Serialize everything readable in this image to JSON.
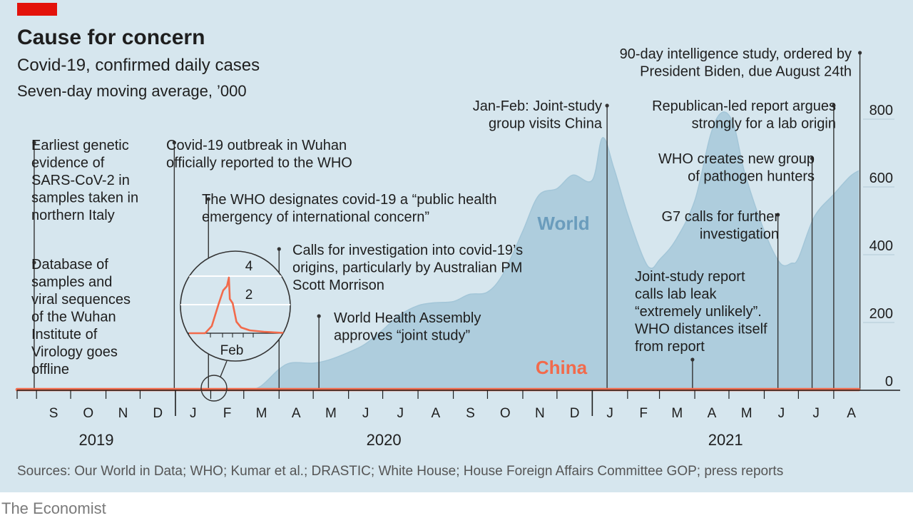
{
  "chart_data": {
    "type": "area",
    "title": "Cause for concern",
    "subtitle": "Covid-19, confirmed daily cases",
    "unit_note": "Seven-day moving average, ’000",
    "source": "Sources: Our World in Data; WHO; Kumar et al.; DRASTIC; White House; House Foreign Affairs Committee GOP; press reports",
    "brand": "The Economist",
    "colors": {
      "background": "#d6e6ee",
      "world_fill": "#aecddd",
      "world_line": "#a3c6d8",
      "china": "#f26a4b",
      "text": "#1e1e1e",
      "brand_red": "#e3120b",
      "grid": "#ffffff",
      "world_label": "#6a9cbc"
    },
    "x_axis": {
      "range": [
        "2019-08-15",
        "2021-08-23"
      ],
      "months": [
        "S",
        "O",
        "N",
        "D",
        "J",
        "F",
        "M",
        "A",
        "M",
        "J",
        "J",
        "A",
        "S",
        "O",
        "N",
        "D",
        "J",
        "F",
        "M",
        "A",
        "M",
        "J",
        "J",
        "A"
      ],
      "years": [
        "2019",
        "2020",
        "2021"
      ]
    },
    "y_axis": {
      "side": "right",
      "range": [
        0,
        850
      ],
      "ticks": [
        "0",
        "200",
        "400",
        "600",
        "800"
      ],
      "tick_values": [
        0,
        200,
        400,
        600,
        800
      ]
    },
    "series": [
      {
        "name": "World",
        "color": "#aecddd",
        "points": [
          [
            "2019-08-15",
            0
          ],
          [
            "2020-01-31",
            0
          ],
          [
            "2020-03-01",
            1
          ],
          [
            "2020-03-15",
            10
          ],
          [
            "2020-04-01",
            62
          ],
          [
            "2020-04-12",
            81
          ],
          [
            "2020-05-01",
            80
          ],
          [
            "2020-05-15",
            90
          ],
          [
            "2020-06-01",
            112
          ],
          [
            "2020-06-15",
            135
          ],
          [
            "2020-07-01",
            178
          ],
          [
            "2020-07-15",
            220
          ],
          [
            "2020-08-01",
            250
          ],
          [
            "2020-08-15",
            258
          ],
          [
            "2020-09-01",
            262
          ],
          [
            "2020-09-15",
            283
          ],
          [
            "2020-10-01",
            290
          ],
          [
            "2020-10-15",
            345
          ],
          [
            "2020-11-01",
            470
          ],
          [
            "2020-11-15",
            575
          ],
          [
            "2020-12-01",
            595
          ],
          [
            "2020-12-15",
            635
          ],
          [
            "2021-01-01",
            620
          ],
          [
            "2021-01-10",
            745
          ],
          [
            "2021-01-20",
            655
          ],
          [
            "2021-02-01",
            520
          ],
          [
            "2021-02-15",
            390
          ],
          [
            "2021-02-22",
            360
          ],
          [
            "2021-03-01",
            385
          ],
          [
            "2021-03-15",
            442
          ],
          [
            "2021-04-01",
            560
          ],
          [
            "2021-04-15",
            755
          ],
          [
            "2021-04-25",
            820
          ],
          [
            "2021-05-05",
            785
          ],
          [
            "2021-05-15",
            640
          ],
          [
            "2021-06-01",
            470
          ],
          [
            "2021-06-15",
            375
          ],
          [
            "2021-06-25",
            375
          ],
          [
            "2021-07-01",
            390
          ],
          [
            "2021-07-15",
            512
          ],
          [
            "2021-08-01",
            578
          ],
          [
            "2021-08-15",
            630
          ],
          [
            "2021-08-23",
            648
          ]
        ]
      },
      {
        "name": "China",
        "color": "#f26a4b",
        "points": [
          [
            "2019-08-15",
            0
          ],
          [
            "2020-01-18",
            0
          ],
          [
            "2020-01-25",
            0.5
          ],
          [
            "2020-02-01",
            2
          ],
          [
            "2020-02-06",
            3
          ],
          [
            "2020-02-10",
            3.3
          ],
          [
            "2020-02-12",
            3.9
          ],
          [
            "2020-02-13",
            2.4
          ],
          [
            "2020-02-16",
            2.1
          ],
          [
            "2020-02-20",
            0.8
          ],
          [
            "2020-02-25",
            0.4
          ],
          [
            "2020-03-05",
            0.2
          ],
          [
            "2020-03-20",
            0.1
          ],
          [
            "2021-08-23",
            0
          ]
        ]
      }
    ],
    "series_labels": {
      "world": "World",
      "china": "China"
    },
    "inset": {
      "description": "China, Jan–Mar 2020 magnified",
      "y_ticks": [
        "2",
        "4"
      ],
      "x_label": "Feb"
    },
    "annotations": [
      {
        "date": "2019-08-30",
        "text": [
          "Earliest genetic",
          "evidence of",
          "SARS-CoV-2 in",
          "samples taken in",
          "northern Italy"
        ]
      },
      {
        "date": "2019-08-30",
        "text": [
          "Database of",
          "samples and",
          "viral sequences",
          "of the Wuhan",
          "Institute of",
          "Virology goes",
          "offline"
        ]
      },
      {
        "date": "2019-12-31",
        "text": [
          "Covid-19 outbreak in Wuhan",
          "officially reported to the WHO"
        ]
      },
      {
        "date": "2020-01-30",
        "text": [
          "The WHO designates covid-19 a “public health",
          "emergency of international concern”"
        ]
      },
      {
        "date": "2020-04-01",
        "text": [
          "Calls for investigation into covid-19’s",
          "origins, particularly by Australian PM",
          "Scott Morrison"
        ]
      },
      {
        "date": "2020-05-06",
        "text": [
          "World Health Assembly",
          "approves “joint study”"
        ]
      },
      {
        "date": "2021-01-14",
        "text": [
          "Jan-Feb: Joint-study",
          "group visits China"
        ]
      },
      {
        "date": "2021-03-30",
        "text": [
          "Joint-study report",
          "calls lab leak",
          "“extremely unlikely”.",
          "WHO distances itself",
          "from report"
        ]
      },
      {
        "date": "2021-06-13",
        "text": [
          "G7 calls for further",
          "investigation"
        ]
      },
      {
        "date": "2021-07-13",
        "text": [
          "WHO creates new group",
          "of pathogen hunters"
        ]
      },
      {
        "date": "2021-08-01",
        "text": [
          "Republican-led report argues",
          "strongly for a lab origin"
        ]
      },
      {
        "date": "2021-08-24",
        "text": [
          "90-day intelligence study, ordered by",
          "President Biden, due August 24th"
        ]
      }
    ]
  }
}
